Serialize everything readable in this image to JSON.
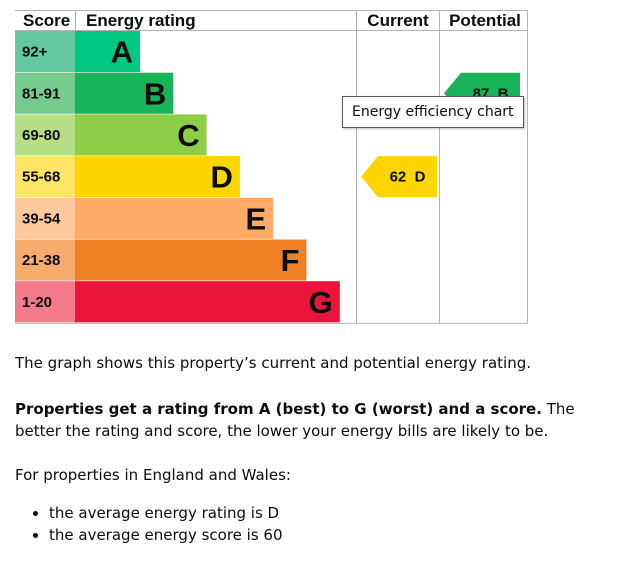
{
  "chart_data": {
    "type": "bar",
    "title": "",
    "headers": {
      "score": "Score",
      "rating": "Energy rating",
      "current": "Current",
      "potential": "Potential"
    },
    "bands": [
      {
        "range": "92+",
        "letter": "A",
        "color": "#00c781",
        "light": "#64c9a2"
      },
      {
        "range": "81-91",
        "letter": "B",
        "color": "#19b459",
        "light": "#76cc8f"
      },
      {
        "range": "69-80",
        "letter": "C",
        "color": "#8dce46",
        "light": "#b5de87"
      },
      {
        "range": "55-68",
        "letter": "D",
        "color": "#ffd500",
        "light": "#ffe566"
      },
      {
        "range": "39-54",
        "letter": "E",
        "color": "#fcaa65",
        "light": "#fdc89b"
      },
      {
        "range": "21-38",
        "letter": "F",
        "color": "#ef8023",
        "light": "#f5ac6c"
      },
      {
        "range": "1-20",
        "letter": "G",
        "color": "#e9153b",
        "light": "#f27a89"
      }
    ],
    "current": {
      "score": 62,
      "letter": "D",
      "label": "62  D",
      "color": "#ffd500"
    },
    "potential": {
      "score": 87,
      "letter": "B",
      "label": "87  B",
      "color": "#19b459"
    }
  },
  "tooltip": "Energy efficiency chart",
  "description": "The graph shows this property’s current and potential energy rating.",
  "rating_info": {
    "bold": "Properties get a rating from A (best) to G (worst) and a score.",
    "rest": " The better the rating and score, the lower your energy bills are likely to be."
  },
  "region_intro": "For properties in England and Wales:",
  "averages": [
    "the average energy rating is D",
    "the average energy score is 60"
  ]
}
